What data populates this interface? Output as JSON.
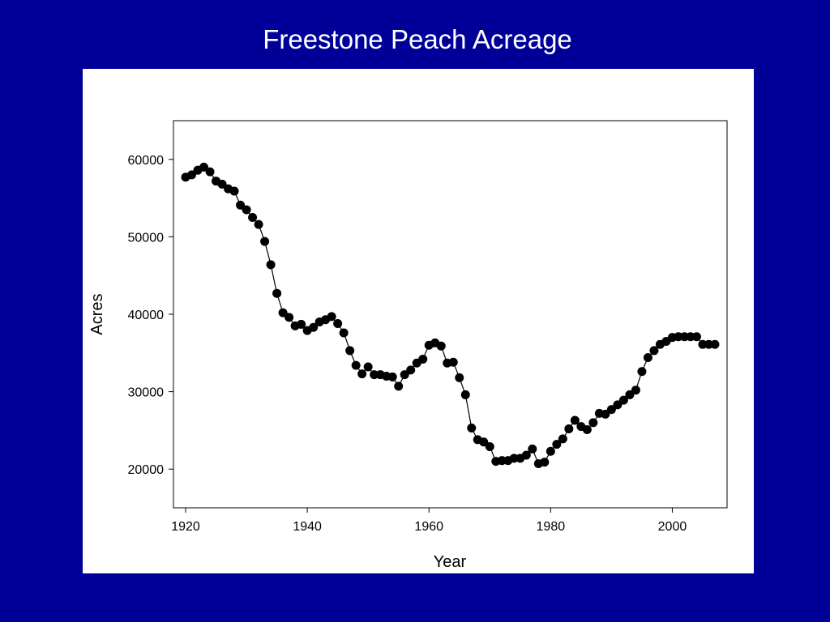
{
  "slide": {
    "title": "Freestone Peach Acreage"
  },
  "colors": {
    "background": "#000099",
    "panel": "#ffffff",
    "marker": "#000000",
    "line": "#000000"
  },
  "chart_data": {
    "type": "line",
    "title": "",
    "xlabel": "Year",
    "ylabel": "Acres",
    "xlim": [
      1918,
      2009
    ],
    "ylim": [
      15000,
      65000
    ],
    "xticks": [
      1920,
      1940,
      1960,
      1980,
      2000
    ],
    "yticks": [
      20000,
      30000,
      40000,
      50000,
      60000
    ],
    "xtick_labels": [
      "1920",
      "1940",
      "1960",
      "1980",
      "2000"
    ],
    "ytick_labels": [
      "20000",
      "30000",
      "40000",
      "50000",
      "60000"
    ],
    "grid": false,
    "series": [
      {
        "marker": "filled-circle",
        "points": [
          [
            1920,
            57700
          ],
          [
            1921,
            58000
          ],
          [
            1922,
            58600
          ],
          [
            1923,
            59000
          ],
          [
            1924,
            58400
          ],
          [
            1925,
            57200
          ],
          [
            1926,
            56800
          ],
          [
            1927,
            56200
          ],
          [
            1928,
            55900
          ],
          [
            1929,
            54100
          ],
          [
            1930,
            53500
          ],
          [
            1931,
            52500
          ],
          [
            1932,
            51600
          ],
          [
            1933,
            49400
          ],
          [
            1934,
            46400
          ],
          [
            1935,
            42700
          ],
          [
            1936,
            40200
          ],
          [
            1937,
            39600
          ],
          [
            1938,
            38500
          ],
          [
            1939,
            38700
          ],
          [
            1940,
            37900
          ],
          [
            1941,
            38300
          ],
          [
            1942,
            39000
          ],
          [
            1943,
            39300
          ],
          [
            1944,
            39700
          ],
          [
            1945,
            38800
          ],
          [
            1946,
            37600
          ],
          [
            1947,
            35300
          ],
          [
            1948,
            33400
          ],
          [
            1949,
            32300
          ],
          [
            1950,
            33200
          ],
          [
            1951,
            32200
          ],
          [
            1952,
            32200
          ],
          [
            1953,
            32000
          ],
          [
            1954,
            31900
          ],
          [
            1955,
            30700
          ],
          [
            1956,
            32200
          ],
          [
            1957,
            32800
          ],
          [
            1958,
            33700
          ],
          [
            1959,
            34200
          ],
          [
            1960,
            36000
          ],
          [
            1961,
            36300
          ],
          [
            1962,
            35900
          ],
          [
            1963,
            33700
          ],
          [
            1964,
            33800
          ],
          [
            1965,
            31800
          ],
          [
            1966,
            29600
          ],
          [
            1967,
            25300
          ],
          [
            1968,
            23800
          ],
          [
            1969,
            23500
          ],
          [
            1970,
            22900
          ],
          [
            1971,
            21000
          ],
          [
            1972,
            21100
          ],
          [
            1973,
            21100
          ],
          [
            1974,
            21400
          ],
          [
            1975,
            21400
          ],
          [
            1976,
            21800
          ],
          [
            1977,
            22600
          ],
          [
            1978,
            20700
          ],
          [
            1979,
            20900
          ],
          [
            1980,
            22300
          ],
          [
            1981,
            23200
          ],
          [
            1982,
            23900
          ],
          [
            1983,
            25200
          ],
          [
            1984,
            26300
          ],
          [
            1985,
            25500
          ],
          [
            1986,
            25100
          ],
          [
            1987,
            26000
          ],
          [
            1988,
            27200
          ],
          [
            1989,
            27100
          ],
          [
            1990,
            27700
          ],
          [
            1991,
            28300
          ],
          [
            1992,
            28900
          ],
          [
            1993,
            29600
          ],
          [
            1994,
            30200
          ],
          [
            1995,
            32600
          ],
          [
            1996,
            34400
          ],
          [
            1997,
            35300
          ],
          [
            1998,
            36100
          ],
          [
            1999,
            36500
          ],
          [
            2000,
            37000
          ],
          [
            2001,
            37100
          ],
          [
            2002,
            37100
          ],
          [
            2003,
            37100
          ],
          [
            2004,
            37100
          ],
          [
            2005,
            36100
          ],
          [
            2006,
            36100
          ],
          [
            2007,
            36100
          ]
        ]
      }
    ]
  }
}
